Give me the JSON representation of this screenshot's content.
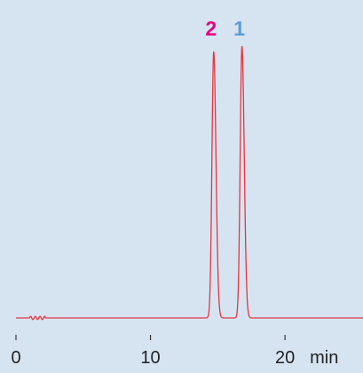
{
  "chart_data": {
    "type": "line",
    "xunit": "min",
    "xlim": [
      0,
      25.8
    ],
    "ylim": [
      0,
      1.0
    ],
    "x_ticks": [
      {
        "value": 0,
        "label": "0"
      },
      {
        "value": 10,
        "label": "10"
      },
      {
        "value": 20,
        "label": "20"
      }
    ],
    "peaks": [
      {
        "label": "2",
        "retention_time": 14.7,
        "height": 1.0,
        "color": "#e6007e"
      },
      {
        "label": "1",
        "retention_time": 16.8,
        "height": 1.02,
        "color": "#5b9bd5"
      }
    ],
    "trace_color": "#e8343c",
    "background_color": "#d6e4f2"
  }
}
